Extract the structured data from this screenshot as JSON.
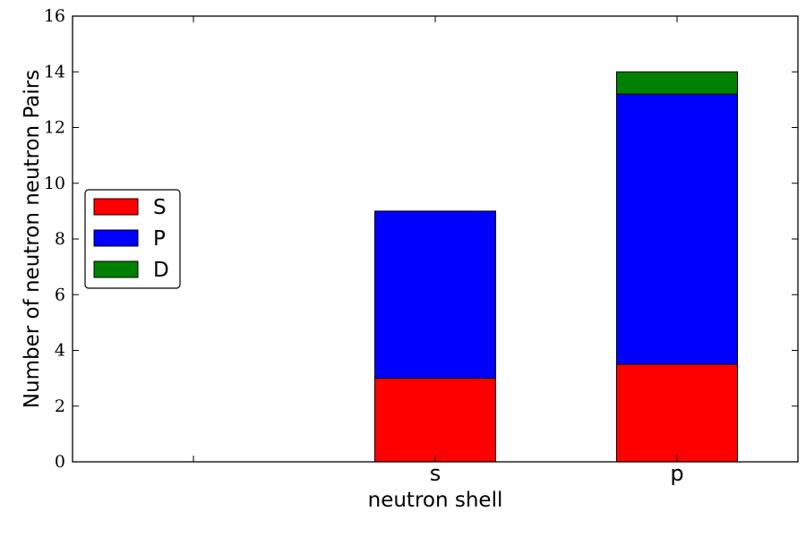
{
  "chart_data": {
    "type": "bar",
    "stacked": true,
    "categories": [
      "",
      "s",
      "p"
    ],
    "series": [
      {
        "name": "S",
        "color": "#ff0000",
        "values": [
          0,
          3.0,
          3.5
        ]
      },
      {
        "name": "P",
        "color": "#0000ff",
        "values": [
          0,
          6.0,
          9.7
        ]
      },
      {
        "name": "D",
        "color": "#008000",
        "values": [
          0,
          0,
          0.8
        ]
      }
    ],
    "xlabel": "neutron shell",
    "ylabel": "Number of neutron neutron Pairs",
    "ylim": [
      0,
      16
    ],
    "yticks": [
      "0",
      "2",
      "4",
      "6",
      "8",
      "10",
      "12",
      "14",
      "16"
    ],
    "grid": false,
    "legend_position": "center-left"
  }
}
